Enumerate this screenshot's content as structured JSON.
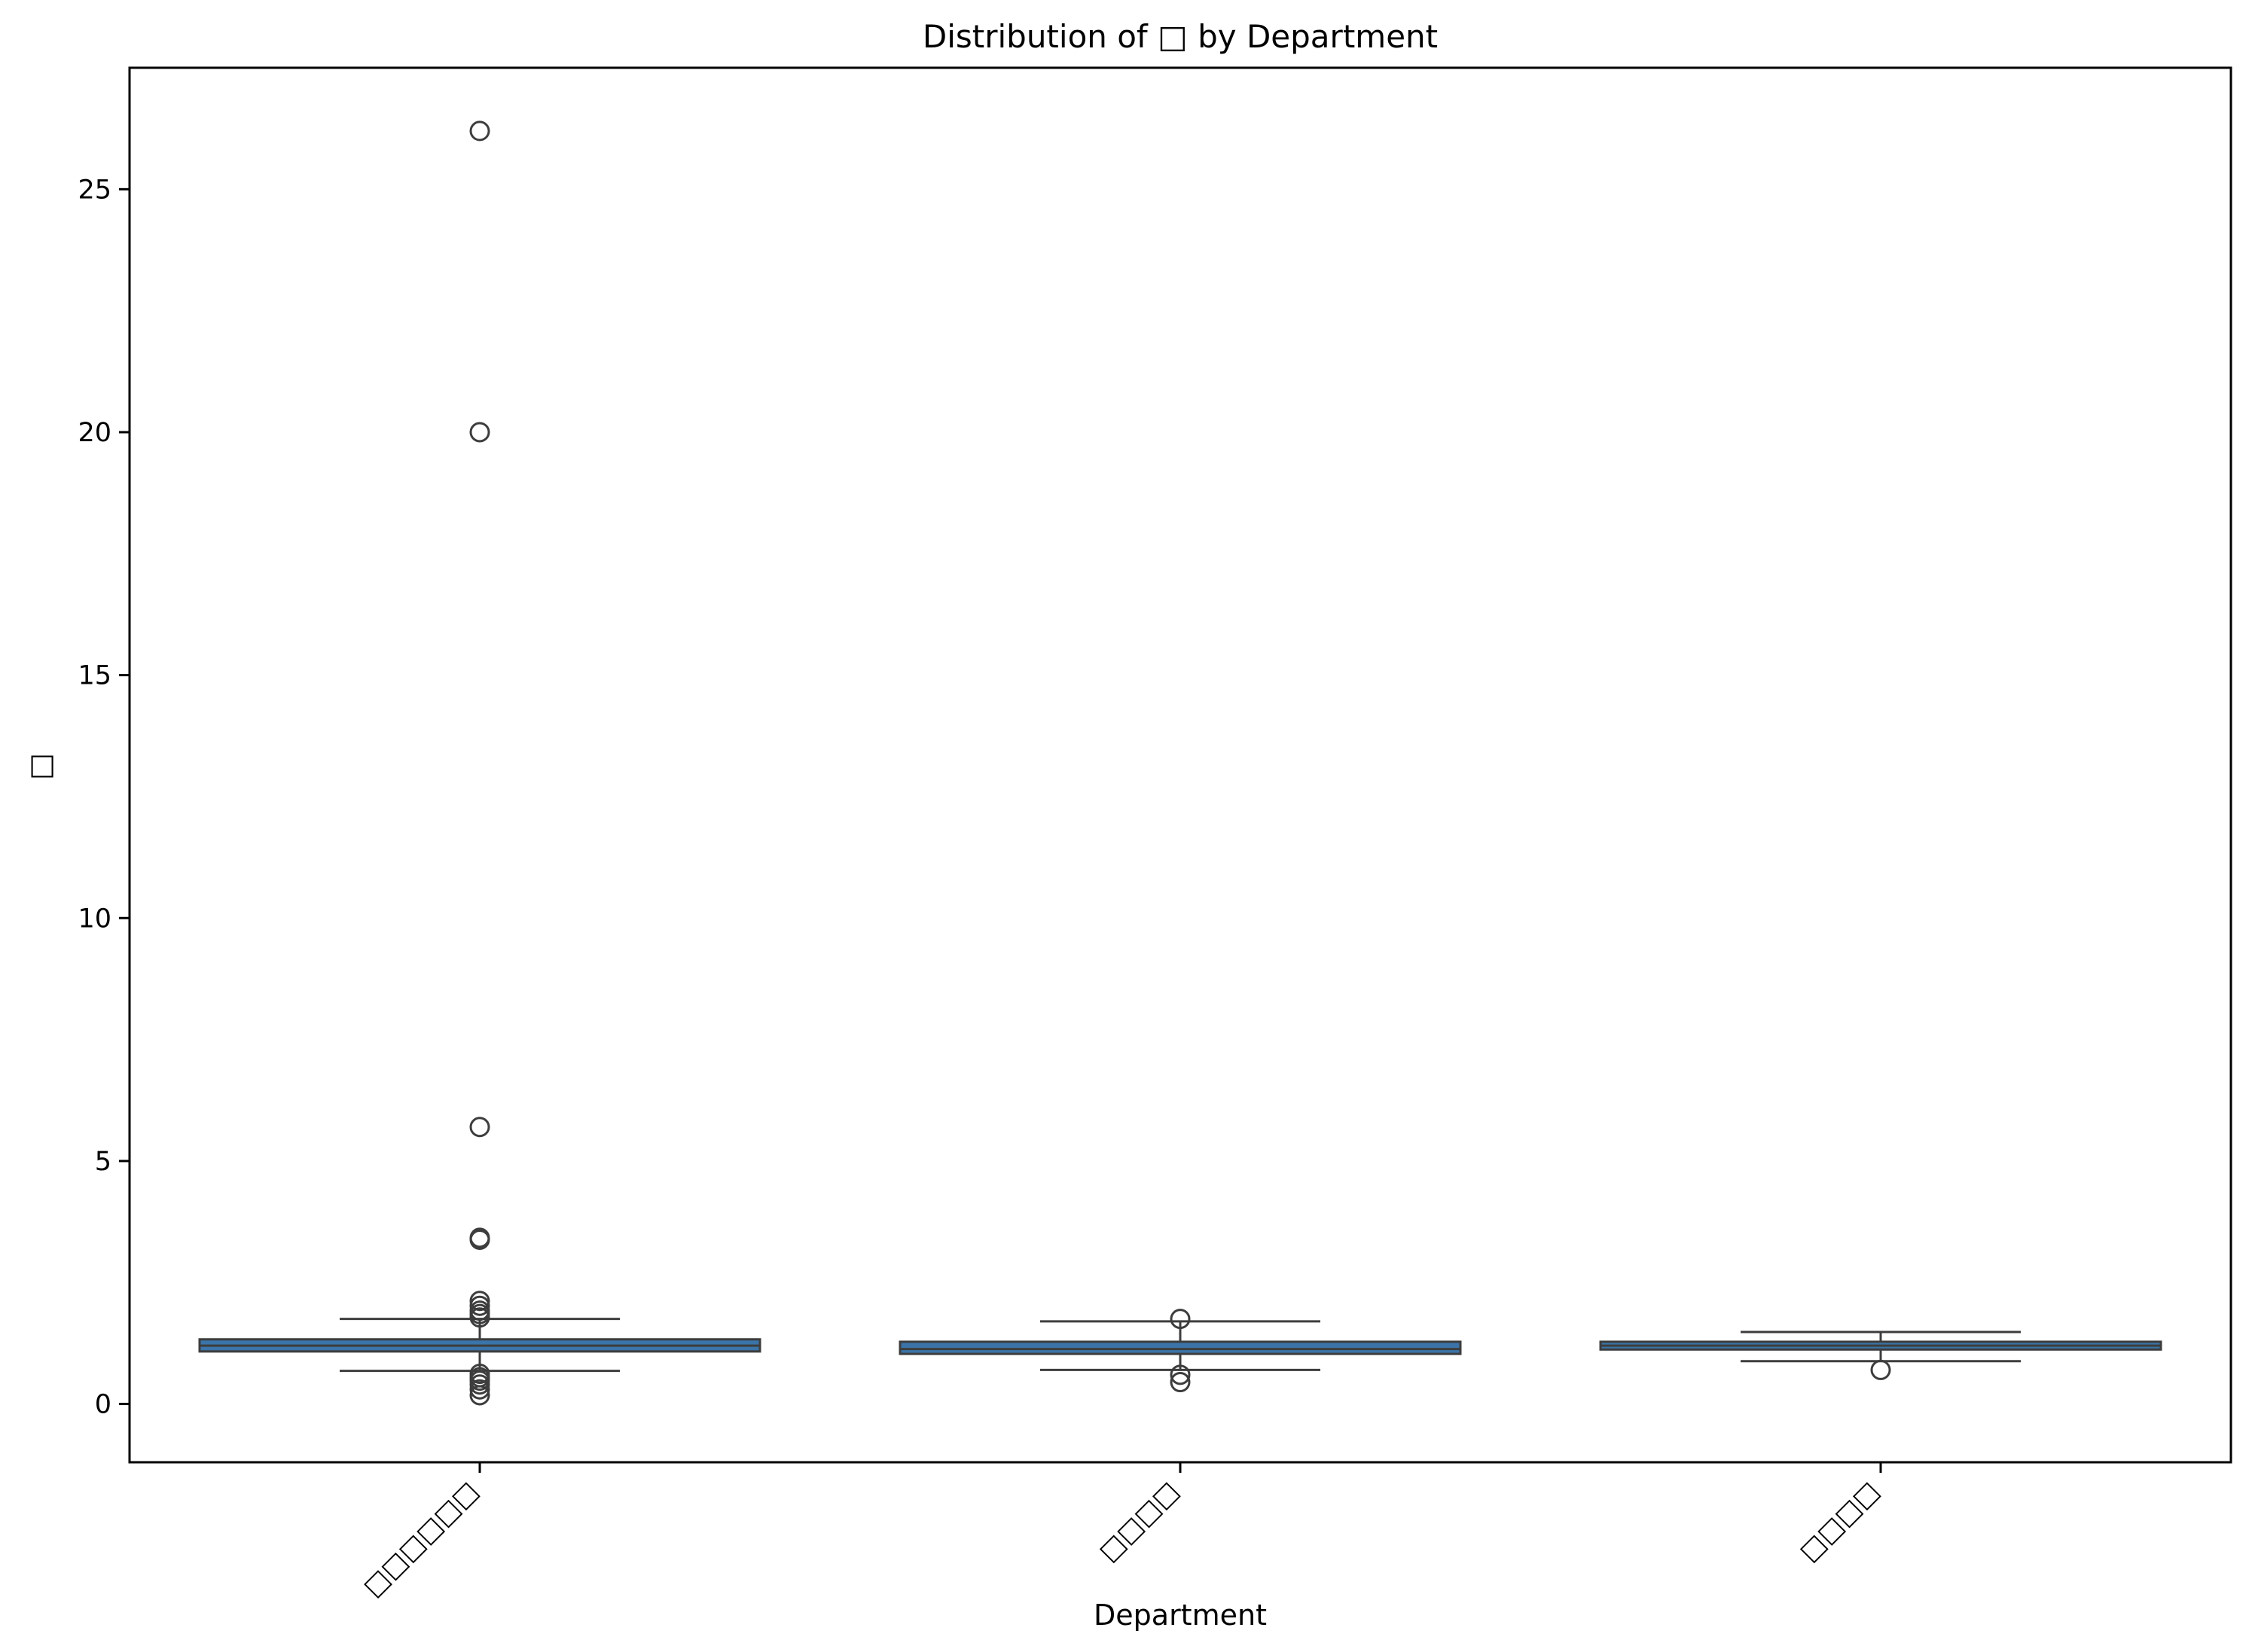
{
  "chart_data": {
    "type": "box",
    "title": "Distribution of □ by Department",
    "xlabel": "Department",
    "ylabel": "□",
    "ylim": [
      -1.2,
      27.5
    ],
    "yticks": [
      0,
      5,
      10,
      15,
      20,
      25
    ],
    "ytick_labels": [
      "0",
      "5",
      "10",
      "15",
      "20",
      "25"
    ],
    "categories": [
      "□□□□□□",
      "□□□□",
      "□□□□"
    ],
    "grid": false,
    "colors": {
      "box_fill": "#3a74a8",
      "line": "#3d3d3d"
    },
    "boxes": [
      {
        "whisker_low": 0.68,
        "q1": 1.08,
        "median": 1.2,
        "q3": 1.33,
        "whisker_high": 1.75,
        "outliers": [
          26.2,
          20.0,
          5.7,
          3.42,
          3.38,
          2.12,
          2.02,
          1.92,
          1.85,
          1.78,
          0.62,
          0.55,
          0.48,
          0.4,
          0.3,
          0.18
        ]
      },
      {
        "whisker_low": 0.7,
        "q1": 1.03,
        "median": 1.13,
        "q3": 1.28,
        "whisker_high": 1.7,
        "outliers": [
          1.75,
          0.6,
          0.45
        ]
      },
      {
        "whisker_low": 0.88,
        "q1": 1.12,
        "median": 1.2,
        "q3": 1.28,
        "whisker_high": 1.48,
        "outliers": [
          0.7
        ]
      }
    ]
  }
}
